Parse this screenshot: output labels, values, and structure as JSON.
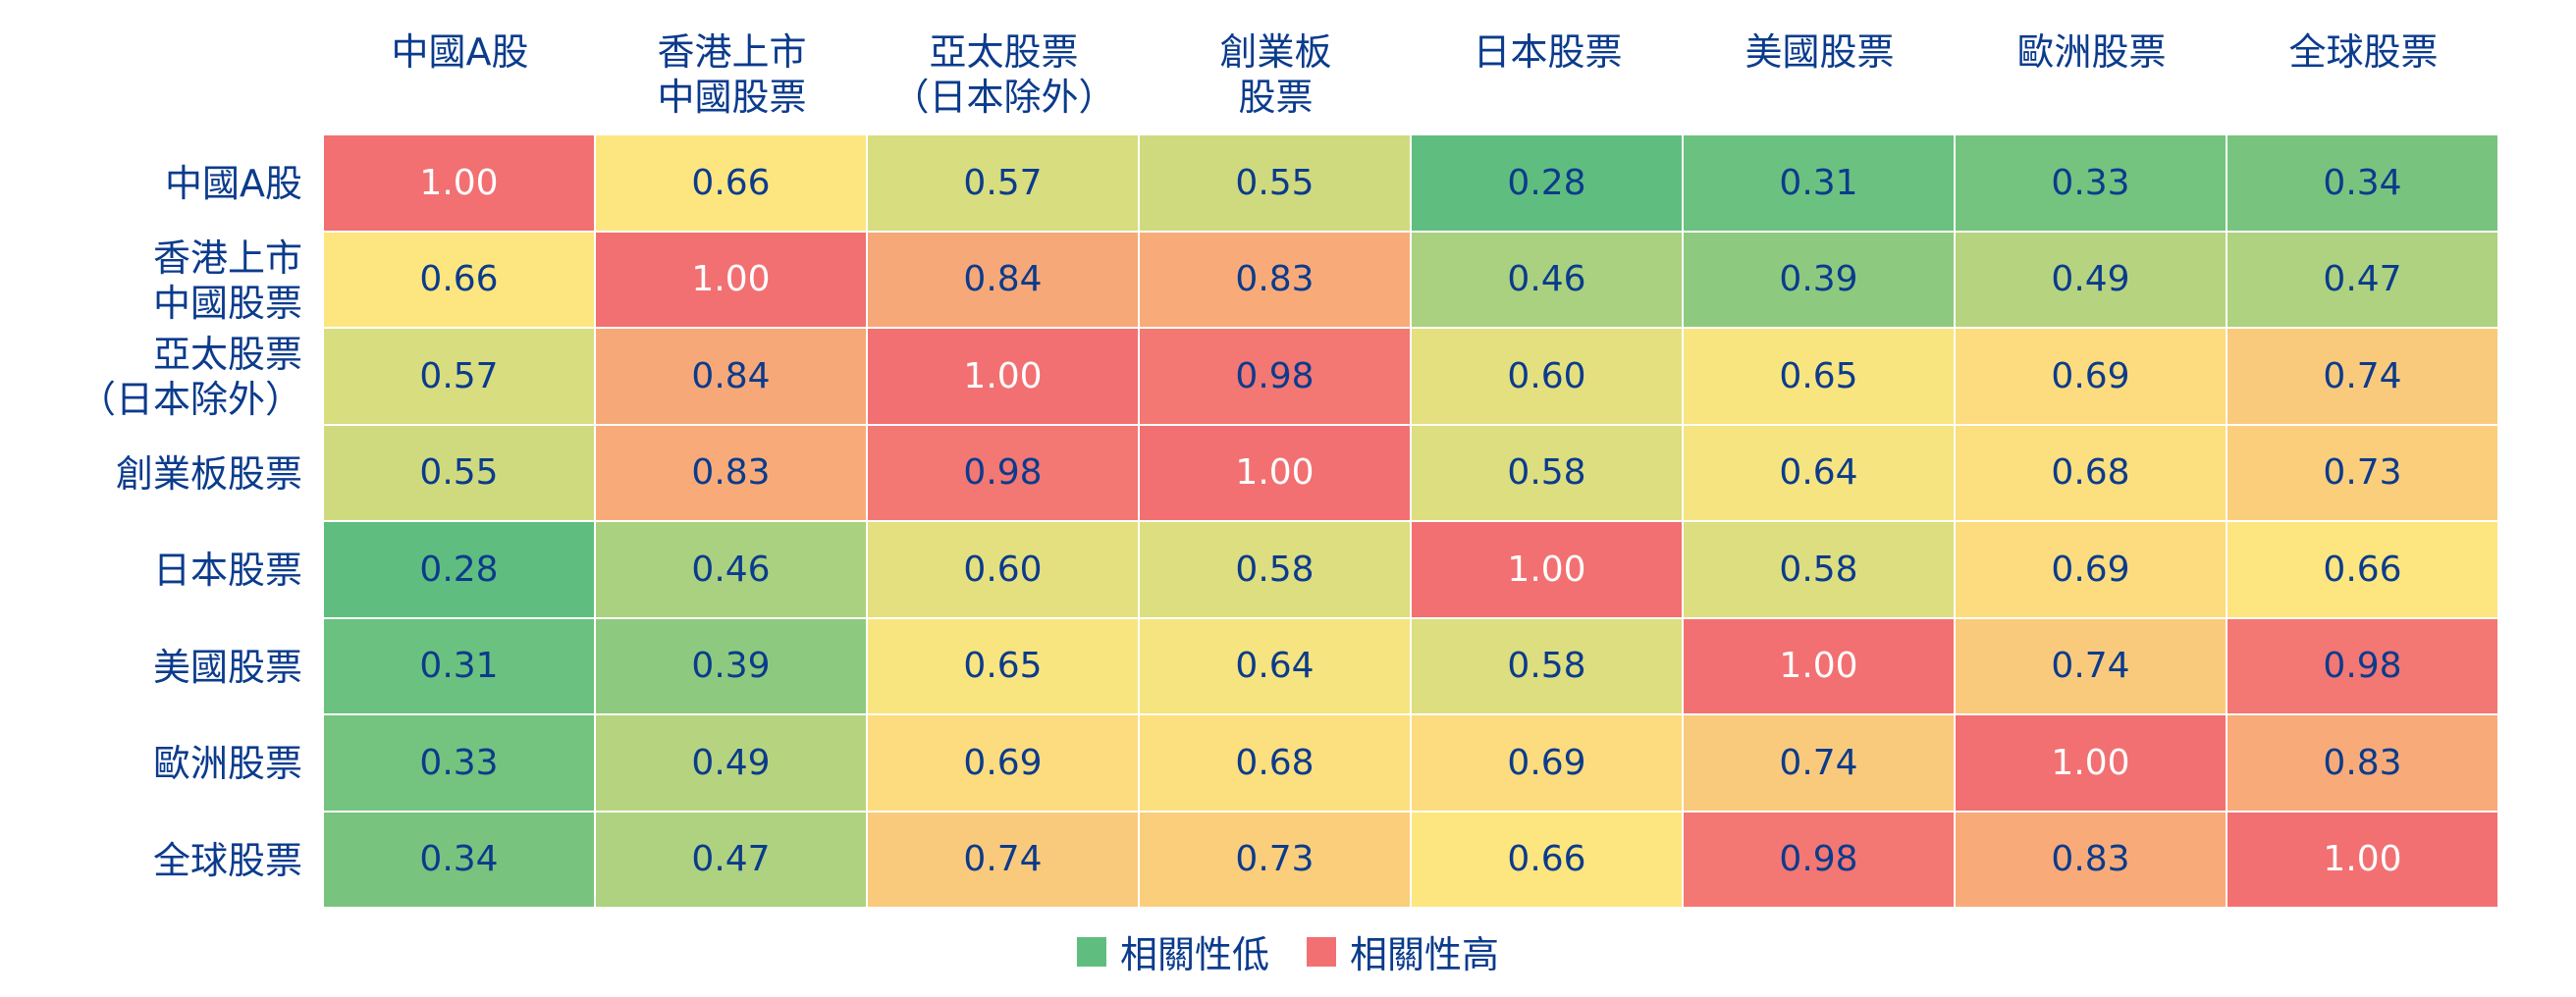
{
  "chart_data": {
    "type": "heatmap",
    "columns": [
      "中國A股",
      "香港上市\n中國股票",
      "亞太股票\n（日本除外）",
      "創業板\n股票",
      "日本股票",
      "美國股票",
      "歐洲股票",
      "全球股票"
    ],
    "rows": [
      "中國A股",
      "香港上市\n中國股票",
      "亞太股票\n（日本除外）",
      "創業板股票",
      "日本股票",
      "美國股票",
      "歐洲股票",
      "全球股票"
    ],
    "values": [
      [
        "1.00",
        "0.66",
        "0.57",
        "0.55",
        "0.28",
        "0.31",
        "0.33",
        "0.34"
      ],
      [
        "0.66",
        "1.00",
        "0.84",
        "0.83",
        "0.46",
        "0.39",
        "0.49",
        "0.47"
      ],
      [
        "0.57",
        "0.84",
        "1.00",
        "0.98",
        "0.60",
        "0.65",
        "0.69",
        "0.74"
      ],
      [
        "0.55",
        "0.83",
        "0.98",
        "1.00",
        "0.58",
        "0.64",
        "0.68",
        "0.73"
      ],
      [
        "0.28",
        "0.46",
        "0.60",
        "0.58",
        "1.00",
        "0.58",
        "0.69",
        "0.66"
      ],
      [
        "0.31",
        "0.39",
        "0.65",
        "0.64",
        "0.58",
        "1.00",
        "0.74",
        "0.98"
      ],
      [
        "0.33",
        "0.49",
        "0.69",
        "0.68",
        "0.69",
        "0.74",
        "1.00",
        "0.83"
      ],
      [
        "0.34",
        "0.47",
        "0.74",
        "0.73",
        "0.66",
        "0.98",
        "0.83",
        "1.00"
      ]
    ],
    "legend": {
      "low_label": "相關性低",
      "high_label": "相關性高",
      "low_color": "#5fbe7f",
      "high_color": "#f27072"
    },
    "legend_position": "bottom-center",
    "colors": {
      "low": "#5fbe7f",
      "mid": "#fde67f",
      "high": "#f27072"
    }
  }
}
